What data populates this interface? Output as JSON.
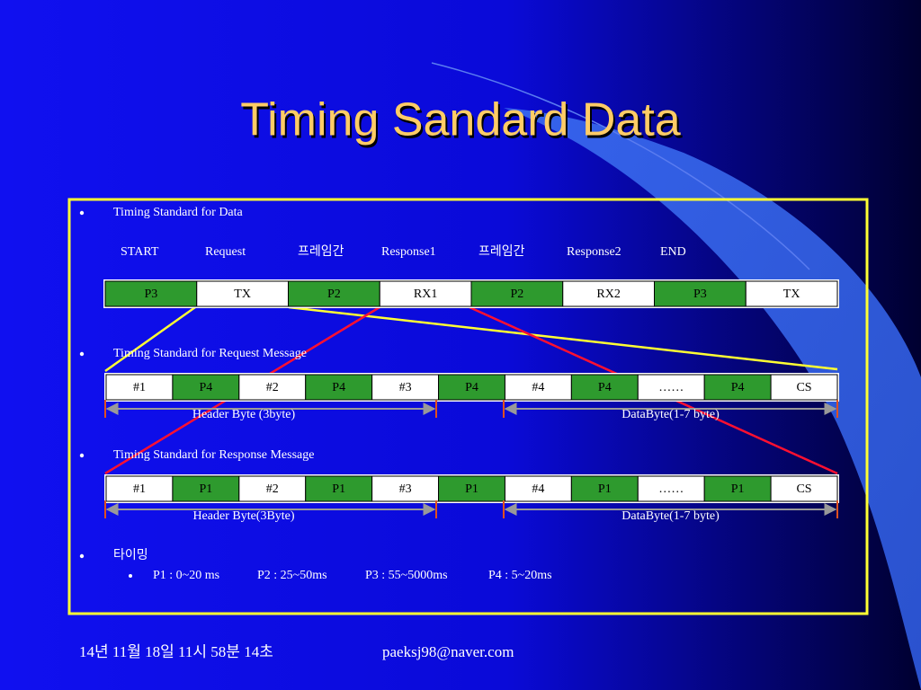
{
  "title": "Timing Sandard Data",
  "sections": [
    {
      "heading": "Timing Standard for Data",
      "labels": [
        "START",
        "Request",
        "프레임간",
        "Response1",
        "프레임간",
        "Response2",
        "END"
      ],
      "cells": [
        "P3",
        "TX",
        "P2",
        "RX1",
        "P2",
        "RX2",
        "P3",
        "TX"
      ]
    },
    {
      "heading": "Timing Standard for Request Message",
      "cells": [
        "#1",
        "P4",
        "#2",
        "P4",
        "#3",
        "P4",
        "#4",
        "P4",
        "……",
        "P4",
        "CS"
      ],
      "brackets": [
        "Header Byte (3byte)",
        "DataByte(1-7 byte)"
      ]
    },
    {
      "heading": "Timing Standard for Response Message",
      "cells": [
        "#1",
        "P1",
        "#2",
        "P1",
        "#3",
        "P1",
        "#4",
        "P1",
        "……",
        "P1",
        "CS"
      ],
      "brackets": [
        "Header Byte(3Byte)",
        "DataByte(1-7 byte)"
      ]
    },
    {
      "heading": "타이밍",
      "items": [
        "P1 : 0~20 ms",
        "P2 : 25~50ms",
        "P3 : 55~5000ms",
        "P4 : 5~20ms"
      ]
    }
  ],
  "footer": {
    "date": "14년 11월 18일 11시 58분 14초",
    "email": "paeksj98@naver.com"
  }
}
